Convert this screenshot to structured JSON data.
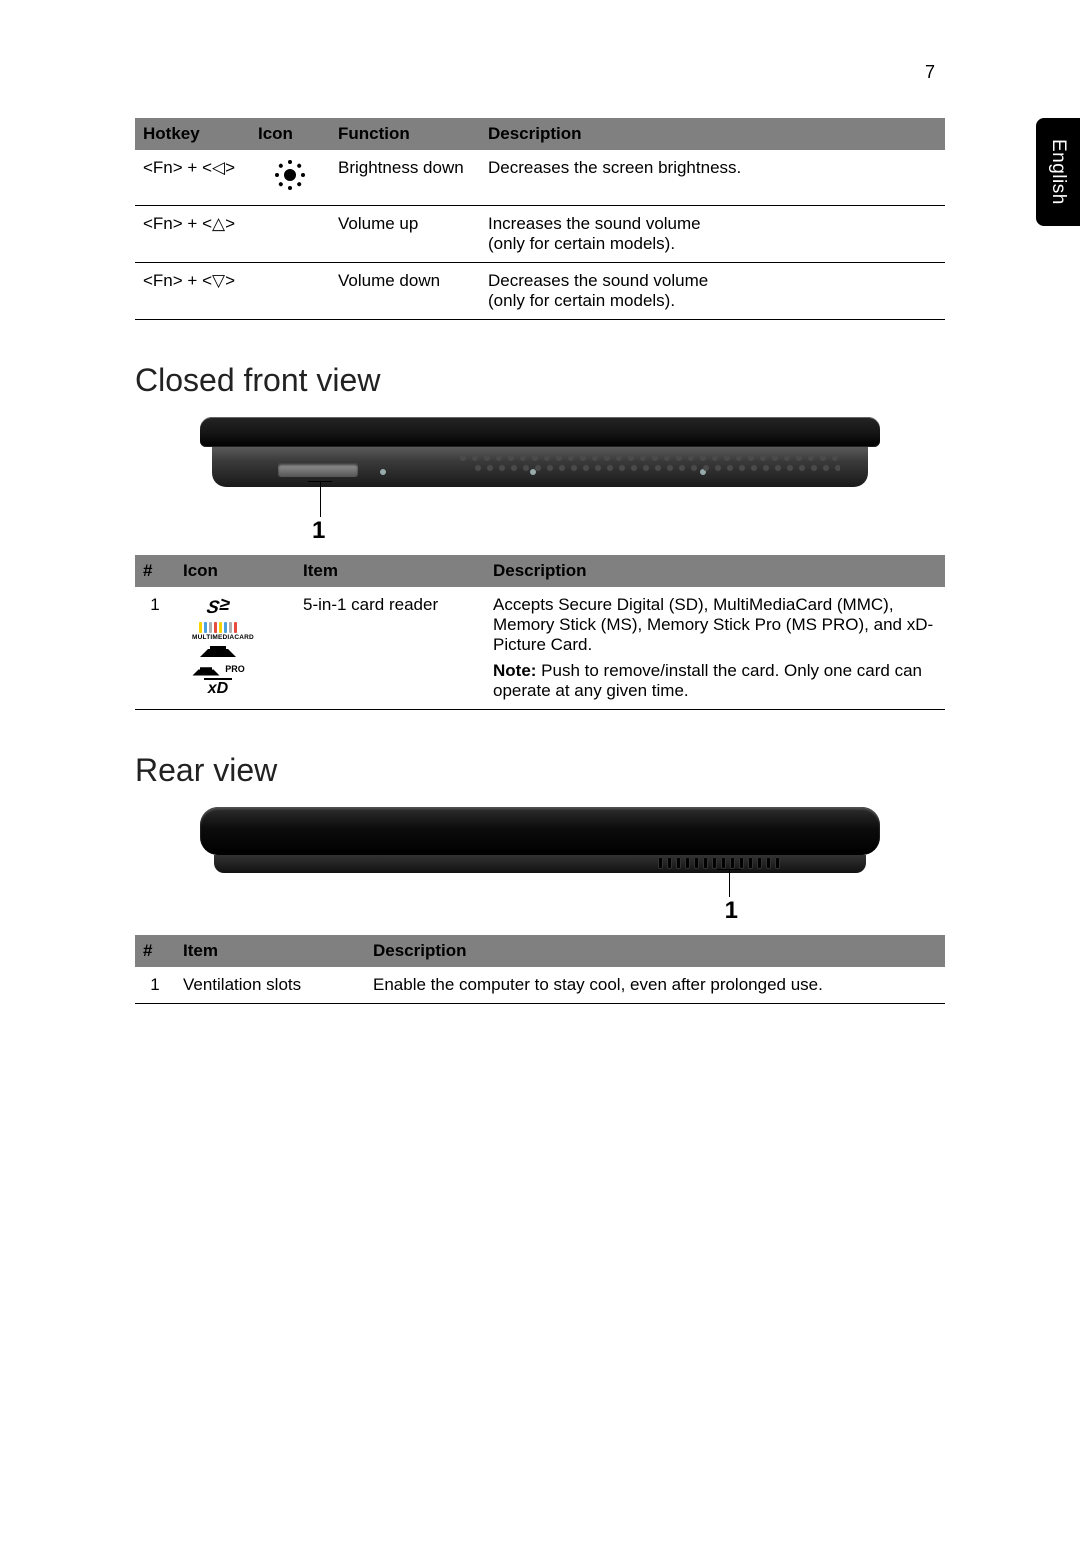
{
  "page_number": "7",
  "language_tab": "English",
  "hotkey_table": {
    "headers": {
      "hotkey": "Hotkey",
      "icon": "Icon",
      "function": "Function",
      "description": "Description"
    },
    "rows": [
      {
        "hotkey": "<Fn> + <◁>",
        "icon": "brightness-down",
        "function": "Brightness down",
        "description": "Decreases the screen brightness."
      },
      {
        "hotkey": "<Fn> + <△>",
        "icon": "",
        "function": "Volume up",
        "description": "Increases the sound volume\n(only for certain models)."
      },
      {
        "hotkey": "<Fn> + <▽>",
        "icon": "",
        "function": "Volume down",
        "description": "Decreases the sound volume\n(only for certain models)."
      }
    ]
  },
  "closed_front": {
    "heading": "Closed front view",
    "callout": "1",
    "table_headers": {
      "num": "#",
      "icon": "Icon",
      "item": "Item",
      "description": "Description"
    },
    "row": {
      "num": "1",
      "item": "5-in-1 card reader",
      "desc_main": "Accepts Secure Digital (SD), MultiMediaCard (MMC), Memory Stick (MS), Memory Stick Pro (MS PRO), and xD-Picture Card.",
      "note_label": "Note:",
      "note_text": " Push to remove/install the card. Only one card can operate at any given time."
    },
    "icon_labels": {
      "sd": "S",
      "mmc": "MULTIMEDIACARD",
      "pro": "PRO",
      "xd": "xD"
    },
    "mmc_bar_colors": [
      "#f7d400",
      "#4aa3df",
      "#b0b0b0",
      "#e74c3c",
      "#f7d400",
      "#4aa3df",
      "#b0b0b0",
      "#e74c3c"
    ]
  },
  "rear": {
    "heading": "Rear view",
    "callout": "1",
    "table_headers": {
      "num": "#",
      "item": "Item",
      "description": "Description"
    },
    "row": {
      "num": "1",
      "item": "Ventilation slots",
      "desc": "Enable the computer to stay cool, even after prolonged use."
    }
  }
}
